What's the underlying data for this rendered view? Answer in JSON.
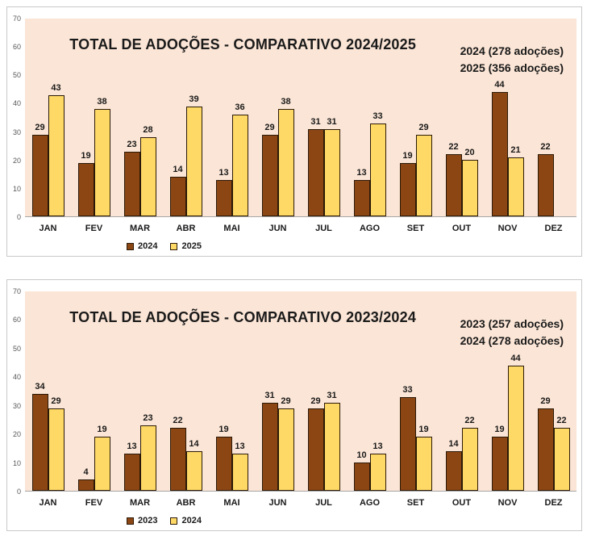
{
  "page": {
    "background": "#FFFFFF",
    "chart_border": "#C9C9C9",
    "axis_line": "#A6A6A6",
    "tick_color": "#595959",
    "text_color": "#1A1A1A"
  },
  "chart_data": [
    {
      "type": "bar",
      "title": "TOTAL DE ADOÇÕES - COMPARATIVO 2024/2025",
      "annotations": [
        "2024 (278 adoções)",
        "2025 (356 adoções)"
      ],
      "categories": [
        "JAN",
        "FEV",
        "MAR",
        "ABR",
        "MAI",
        "JUN",
        "JUL",
        "AGO",
        "SET",
        "OUT",
        "NOV",
        "DEZ"
      ],
      "series": [
        {
          "name": "2024",
          "color": "#8C4614",
          "values": [
            29,
            19,
            23,
            14,
            13,
            29,
            31,
            13,
            19,
            22,
            44,
            22
          ]
        },
        {
          "name": "2025",
          "color": "#FFD966",
          "values": [
            43,
            38,
            28,
            39,
            36,
            38,
            31,
            33,
            29,
            20,
            21,
            null
          ]
        }
      ],
      "ylim": [
        0,
        70
      ],
      "y_ticks": [
        0,
        10,
        20,
        30,
        40,
        50,
        60,
        70
      ],
      "grid": false,
      "legend_position": "bottom-left",
      "plot_background": "#FBE5D6",
      "bar_border_color": "#2B1A08"
    },
    {
      "type": "bar",
      "title": "TOTAL DE ADOÇÕES - COMPARATIVO 2023/2024",
      "annotations": [
        "2023 (257 adoções)",
        "2024 (278 adoções)"
      ],
      "categories": [
        "JAN",
        "FEV",
        "MAR",
        "ABR",
        "MAI",
        "JUN",
        "JUL",
        "AGO",
        "SET",
        "OUT",
        "NOV",
        "DEZ"
      ],
      "series": [
        {
          "name": "2023",
          "color": "#8C4614",
          "values": [
            34,
            4,
            13,
            22,
            19,
            31,
            29,
            10,
            33,
            14,
            19,
            29
          ]
        },
        {
          "name": "2024",
          "color": "#FFD966",
          "values": [
            29,
            19,
            23,
            14,
            13,
            29,
            31,
            13,
            19,
            22,
            44,
            22
          ]
        }
      ],
      "ylim": [
        0,
        70
      ],
      "y_ticks": [
        0,
        10,
        20,
        30,
        40,
        50,
        60,
        70
      ],
      "grid": false,
      "legend_position": "bottom-left",
      "plot_background": "#FBE5D6",
      "bar_border_color": "#2B1A08"
    }
  ]
}
